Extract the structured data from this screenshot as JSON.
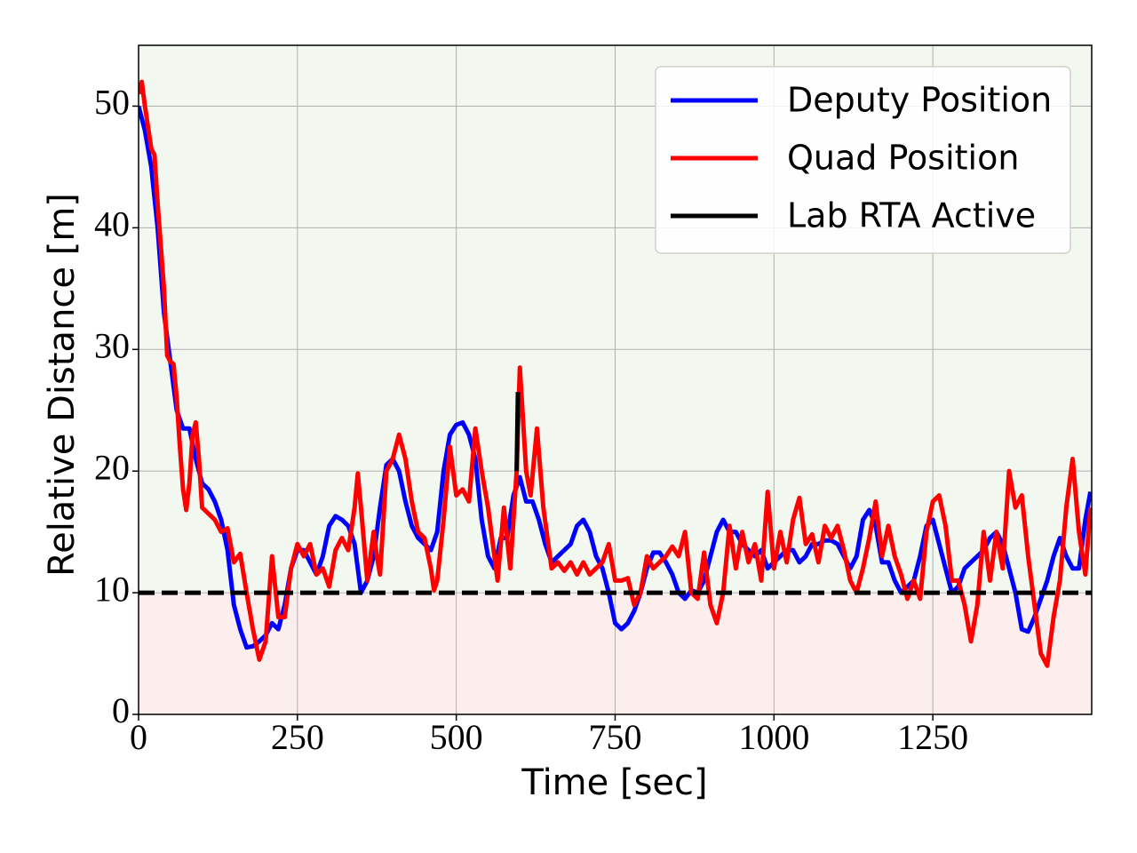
{
  "chart_data": {
    "type": "line",
    "xlabel": "Time [sec]",
    "ylabel": "Relative Distance [m]",
    "xlim": [
      0,
      1500
    ],
    "ylim": [
      0,
      55
    ],
    "xticks": [
      0,
      250,
      500,
      750,
      1000,
      1250
    ],
    "yticks": [
      0,
      10,
      20,
      30,
      40,
      50
    ],
    "grid": true,
    "legend": "upper right",
    "threshold": 10,
    "safe_color": "#f2f8ef",
    "unsafe_color": "#fdeeee",
    "series": [
      {
        "name": "Deputy Position",
        "color": "#0000ff",
        "x": [
          0,
          10,
          20,
          30,
          40,
          50,
          60,
          70,
          80,
          90,
          100,
          110,
          120,
          130,
          140,
          150,
          160,
          170,
          180,
          190,
          200,
          210,
          220,
          230,
          240,
          250,
          260,
          270,
          280,
          290,
          300,
          310,
          320,
          330,
          340,
          350,
          360,
          370,
          380,
          390,
          400,
          410,
          420,
          430,
          440,
          450,
          460,
          470,
          480,
          490,
          500,
          510,
          520,
          530,
          540,
          550,
          560,
          570,
          580,
          590,
          600,
          610,
          620,
          630,
          640,
          650,
          660,
          670,
          680,
          690,
          700,
          710,
          720,
          730,
          740,
          750,
          760,
          770,
          780,
          790,
          800,
          810,
          820,
          830,
          840,
          850,
          860,
          870,
          880,
          890,
          900,
          910,
          920,
          930,
          940,
          950,
          960,
          970,
          980,
          990,
          1000,
          1010,
          1020,
          1030,
          1040,
          1050,
          1060,
          1070,
          1080,
          1090,
          1100,
          1110,
          1120,
          1130,
          1140,
          1150,
          1160,
          1170,
          1180,
          1190,
          1200,
          1210,
          1220,
          1230,
          1240,
          1250,
          1260,
          1270,
          1280,
          1290,
          1300,
          1310,
          1320,
          1330,
          1340,
          1350,
          1360,
          1370,
          1380,
          1390,
          1400,
          1410,
          1420,
          1430,
          1440,
          1450,
          1460,
          1470,
          1480,
          1490,
          1498
        ],
        "values": [
          50,
          48,
          45,
          40,
          33,
          29,
          25,
          23.5,
          23.5,
          21,
          19,
          18.5,
          17.5,
          16,
          13.5,
          9,
          7,
          5.5,
          5.6,
          6,
          6.5,
          7.5,
          7,
          9,
          12,
          13.5,
          13.5,
          12.5,
          11.5,
          13,
          15.5,
          16.3,
          16,
          15.5,
          14,
          10,
          11,
          13,
          17,
          20.5,
          21,
          20,
          17.5,
          15.5,
          14.5,
          14,
          13.5,
          15,
          20,
          23,
          23.8,
          24,
          23,
          21,
          16,
          13,
          12,
          14.5,
          14.5,
          18,
          19.5,
          17.5,
          17.5,
          16,
          14,
          12.5,
          13,
          13.5,
          14,
          15.5,
          16,
          15,
          13,
          12,
          10,
          7.5,
          7,
          7.5,
          8.5,
          10,
          12,
          13.3,
          13.3,
          12.5,
          11.5,
          10,
          9.5,
          10.2,
          10,
          11,
          13,
          15,
          16,
          15,
          15,
          14,
          13.5,
          13,
          13.5,
          12,
          12.5,
          13,
          13.5,
          13.5,
          12.5,
          13,
          14,
          14,
          14.3,
          14.3,
          14,
          13,
          12,
          13,
          16,
          16.8,
          15.5,
          12.5,
          12.5,
          11,
          10,
          10.5,
          11,
          13,
          15.5,
          16,
          14,
          12,
          10,
          10.5,
          12,
          12.5,
          13,
          13.5,
          14.5,
          15,
          14,
          12,
          10,
          7,
          6.8,
          8,
          9.5,
          11,
          13,
          14.5,
          13,
          12,
          12,
          16,
          18.3
        ]
      },
      {
        "name": "Quad Position",
        "color": "#ff0000",
        "x": [
          0,
          5,
          10,
          20,
          25,
          30,
          40,
          45,
          50,
          55,
          60,
          65,
          70,
          75,
          80,
          85,
          90,
          95,
          100,
          110,
          120,
          130,
          140,
          150,
          160,
          170,
          180,
          190,
          200,
          210,
          220,
          230,
          240,
          250,
          260,
          270,
          280,
          290,
          300,
          310,
          320,
          330,
          340,
          345,
          350,
          360,
          370,
          375,
          380,
          390,
          400,
          410,
          420,
          430,
          440,
          450,
          460,
          465,
          470,
          480,
          490,
          500,
          510,
          520,
          530,
          540,
          550,
          565,
          575,
          585,
          595,
          600,
          610,
          617,
          627,
          637,
          650,
          660,
          670,
          680,
          690,
          700,
          710,
          720,
          730,
          740,
          750,
          760,
          770,
          780,
          790,
          800,
          810,
          820,
          830,
          840,
          850,
          860,
          870,
          880,
          890,
          900,
          910,
          920,
          930,
          940,
          950,
          960,
          970,
          980,
          990,
          1000,
          1010,
          1020,
          1030,
          1040,
          1050,
          1060,
          1070,
          1080,
          1090,
          1100,
          1110,
          1120,
          1130,
          1140,
          1150,
          1160,
          1170,
          1180,
          1190,
          1200,
          1210,
          1220,
          1230,
          1240,
          1250,
          1260,
          1270,
          1280,
          1290,
          1300,
          1310,
          1320,
          1330,
          1340,
          1350,
          1360,
          1370,
          1380,
          1390,
          1400,
          1410,
          1420,
          1430,
          1440,
          1450,
          1460,
          1470,
          1480,
          1490,
          1498
        ],
        "values": [
          51,
          52,
          50,
          46.5,
          46,
          42,
          35,
          29.5,
          29,
          28.8,
          26,
          22,
          18.5,
          16.8,
          19,
          23,
          24,
          21,
          17,
          16.5,
          16,
          15,
          15.3,
          12.5,
          13.2,
          10,
          7,
          4.5,
          6,
          13,
          8,
          8,
          12,
          14,
          13,
          14,
          11.5,
          12,
          10.5,
          13.5,
          14.5,
          13.5,
          17,
          19.8,
          17,
          11,
          15,
          13,
          11.5,
          20,
          21,
          23,
          21,
          17.5,
          15,
          14.5,
          12,
          10.2,
          11,
          16,
          22,
          18,
          18.5,
          17.5,
          23.5,
          20,
          17,
          11,
          17,
          12,
          20,
          28.5,
          20,
          18,
          23.5,
          17,
          12,
          12.5,
          11.8,
          12.5,
          11.5,
          12.5,
          11.5,
          12,
          12.5,
          14,
          11,
          11,
          11.2,
          9,
          10,
          13,
          12,
          12.5,
          13,
          13.8,
          13,
          15,
          10,
          9.5,
          13.3,
          9,
          7.5,
          10,
          15.5,
          12,
          15,
          12.5,
          14,
          11,
          18.3,
          12,
          15,
          12.5,
          16,
          17.8,
          14,
          14.8,
          12.5,
          15.5,
          14.5,
          15.5,
          13.5,
          11,
          10,
          12,
          14.5,
          17.5,
          13,
          15.5,
          13,
          11.5,
          9.5,
          11,
          9.5,
          15,
          17.5,
          18,
          15.5,
          11,
          11,
          9,
          6,
          9,
          15,
          11,
          15,
          12,
          20,
          17,
          18,
          13,
          9,
          5,
          4,
          8,
          11,
          17,
          21,
          15,
          11.5,
          17
        ]
      },
      {
        "name": "Lab RTA Active",
        "color": "#000000",
        "x": [
          595,
          597
        ],
        "values": [
          20,
          26.5
        ]
      }
    ]
  }
}
